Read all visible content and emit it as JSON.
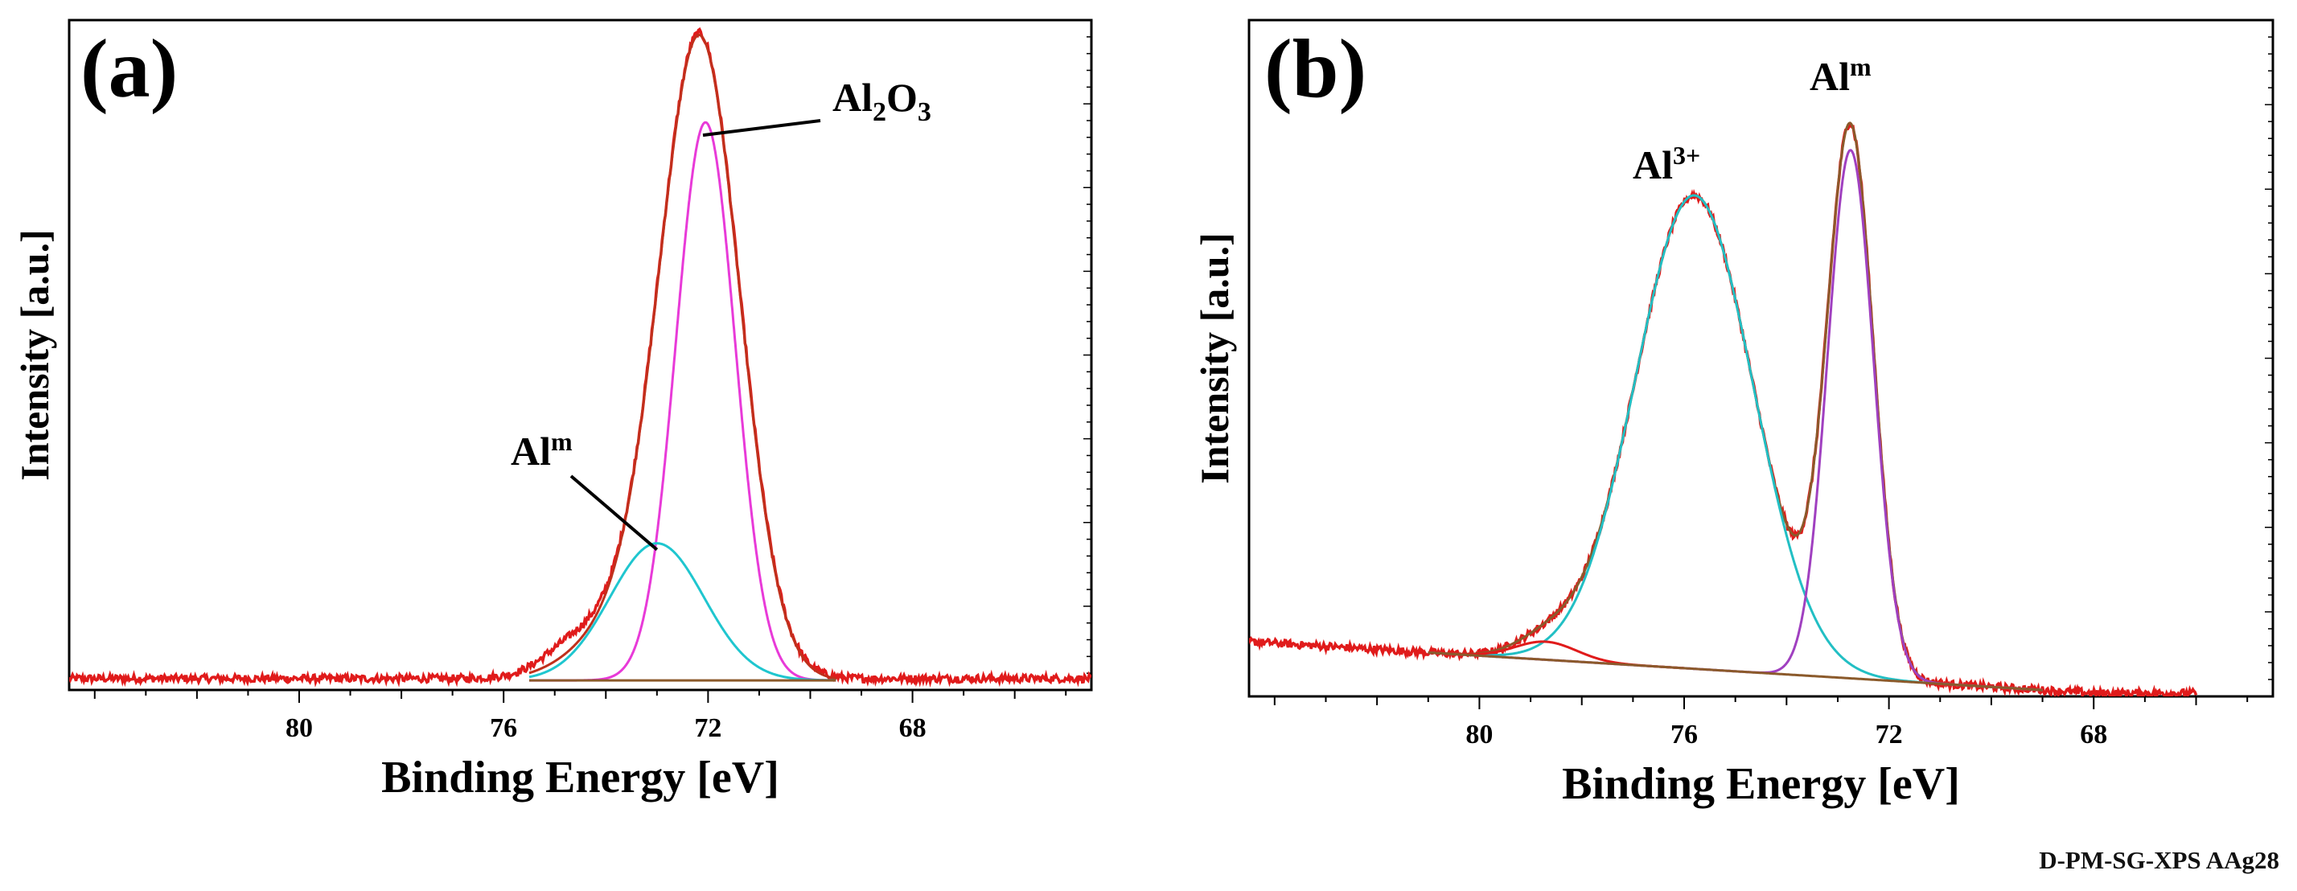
{
  "figure_id": "D-PM-SG-XPS AAg28",
  "colors": {
    "measured": "#e01b1b",
    "envelope": "#c0301c",
    "background": "#8b5a2b",
    "al2o3": "#e83ad8",
    "al_metal_a": "#1fc6cf",
    "al3plus": "#22bfc4",
    "al_metal_b": "#a040c0"
  },
  "chart_data": [
    {
      "type": "line",
      "panel_label": "(a)",
      "xlabel": "Binding Energy [eV]",
      "ylabel": "Intensity [a.u.]",
      "xlim": [
        84.5,
        64.5
      ],
      "ylim": [
        0,
        1.0
      ],
      "x_ticks": [
        80,
        76,
        72,
        68
      ],
      "x_tick_labels": [
        "80",
        "76",
        "72",
        "68"
      ],
      "annotations": [
        {
          "base": "Al",
          "sub": "2",
          "mid": "O",
          "sub2": "3",
          "at_x": 72.1,
          "at_y": 0.87
        },
        {
          "base": "Al",
          "sup": "m",
          "at_x": 73.0,
          "at_y": 0.22
        }
      ],
      "series": [
        {
          "name": "measured",
          "role": "data",
          "color_key": "measured",
          "baseline": 0.018,
          "noise": 0.006,
          "x_from": 84.5,
          "x_to": 64.5,
          "peaks": [
            {
              "center": 72.15,
              "height": 0.985,
              "width": 0.78
            },
            {
              "center": 73.6,
              "height": 0.085,
              "width": 0.95
            },
            {
              "center": 74.8,
              "height": 0.02,
              "width": 0.5
            }
          ]
        },
        {
          "name": "envelope",
          "role": "fit",
          "color_key": "envelope",
          "baseline": 0.015,
          "noise": 0,
          "x_from": 75.5,
          "x_to": 69.5,
          "peaks": [
            {
              "center": 72.15,
              "height": 0.985,
              "width": 0.78
            },
            {
              "center": 73.6,
              "height": 0.085,
              "width": 0.95
            }
          ]
        },
        {
          "name": "Al2O3",
          "role": "component",
          "color_key": "al2o3",
          "baseline": 0.015,
          "noise": 0,
          "x_from": 75.5,
          "x_to": 69.5,
          "peaks": [
            {
              "center": 72.05,
              "height": 0.875,
              "width": 0.58
            }
          ]
        },
        {
          "name": "Al metal",
          "role": "component",
          "color_key": "al_metal_a",
          "baseline": 0.015,
          "noise": 0,
          "x_from": 75.5,
          "x_to": 69.5,
          "peaks": [
            {
              "center": 73.0,
              "height": 0.215,
              "width": 0.92
            }
          ]
        },
        {
          "name": "background",
          "role": "background",
          "color_key": "background",
          "baseline": 0.015,
          "noise": 0,
          "x_from": 75.5,
          "x_to": 69.5,
          "peaks": []
        }
      ]
    },
    {
      "type": "line",
      "panel_label": "(b)",
      "xlabel": "Binding Energy [eV]",
      "ylabel": "Intensity [a.u.]",
      "xlim": [
        84.5,
        64.5
      ],
      "ylim": [
        0,
        1.0
      ],
      "x_ticks": [
        80,
        76,
        72,
        68
      ],
      "x_tick_labels": [
        "80",
        "76",
        "72",
        "68"
      ],
      "annotations": [
        {
          "base": "Al",
          "sup": "3+",
          "at_x": 75.9,
          "at_y": 0.88
        },
        {
          "base": "Al",
          "sup": "m",
          "at_x": 72.8,
          "at_y": 1.04
        }
      ],
      "series": [
        {
          "name": "measured",
          "role": "data",
          "color_key": "measured",
          "baseline_left": 0.085,
          "baseline_right": 0.005,
          "noise": 0.006,
          "x_from": 84.5,
          "x_to": 66.0,
          "peaks": [
            {
              "center": 75.8,
              "height": 0.735,
              "width": 1.15
            },
            {
              "center": 72.75,
              "height": 0.84,
              "width": 0.45
            },
            {
              "center": 78.7,
              "height": 0.028,
              "width": 0.6
            }
          ]
        },
        {
          "name": "envelope",
          "role": "fit",
          "color_key": "background",
          "baseline_left": 0.085,
          "baseline_right": 0.005,
          "noise": 0,
          "x_from": 81.0,
          "x_to": 69.0,
          "peaks": [
            {
              "center": 75.8,
              "height": 0.735,
              "width": 1.15
            },
            {
              "center": 72.75,
              "height": 0.84,
              "width": 0.45
            },
            {
              "center": 78.7,
              "height": 0.028,
              "width": 0.6
            }
          ]
        },
        {
          "name": "Al3+",
          "role": "component",
          "color_key": "al3plus",
          "baseline_left": 0.085,
          "baseline_right": 0.005,
          "noise": 0,
          "x_from": 81.0,
          "x_to": 69.0,
          "peaks": [
            {
              "center": 75.8,
              "height": 0.735,
              "width": 1.15
            }
          ]
        },
        {
          "name": "Al metal",
          "role": "component",
          "color_key": "al_metal_b",
          "baseline_left": 0.085,
          "baseline_right": 0.005,
          "noise": 0,
          "x_from": 81.0,
          "x_to": 69.0,
          "peaks": [
            {
              "center": 72.75,
              "height": 0.82,
              "width": 0.45
            }
          ]
        },
        {
          "name": "satellite",
          "role": "component",
          "color_key": "measured",
          "baseline_left": 0.085,
          "baseline_right": 0.005,
          "noise": 0,
          "x_from": 81.0,
          "x_to": 76.0,
          "peaks": [
            {
              "center": 78.7,
              "height": 0.028,
              "width": 0.6
            }
          ]
        },
        {
          "name": "background",
          "role": "background",
          "color_key": "background",
          "baseline_left": 0.085,
          "baseline_right": 0.005,
          "noise": 0,
          "x_from": 81.0,
          "x_to": 69.0,
          "peaks": []
        }
      ]
    }
  ]
}
